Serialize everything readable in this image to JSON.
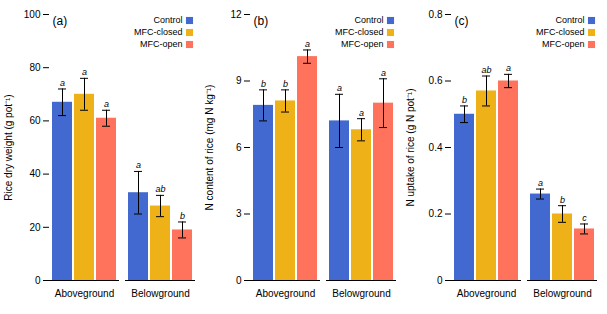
{
  "chart_data": [
    {
      "type": "bar",
      "title": "(a)",
      "ylabel": "Rice dry weight (g pot⁻¹)",
      "categories": [
        "Aboveground",
        "Belowground"
      ],
      "series": [
        {
          "name": "Control",
          "values": [
            67,
            33
          ],
          "errors": [
            5,
            8
          ],
          "annotations": [
            "a",
            "a"
          ]
        },
        {
          "name": "MFC-closed",
          "values": [
            70,
            28
          ],
          "errors": [
            6,
            4
          ],
          "annotations": [
            "a",
            "ab"
          ]
        },
        {
          "name": "MFC-open",
          "values": [
            61,
            19
          ],
          "errors": [
            3,
            3
          ],
          "annotations": [
            "a",
            "b"
          ]
        }
      ],
      "ylim": [
        0,
        100
      ],
      "yticks": [
        0,
        20,
        40,
        60,
        80,
        100
      ],
      "legend": "upper right"
    },
    {
      "type": "bar",
      "title": "(b)",
      "ylabel": "N content of rice (mg N kg⁻¹)",
      "categories": [
        "Aboveground",
        "Belowground"
      ],
      "series": [
        {
          "name": "Control",
          "values": [
            7.9,
            7.2
          ],
          "errors": [
            0.7,
            1.2
          ],
          "annotations": [
            "b",
            "a"
          ]
        },
        {
          "name": "MFC-closed",
          "values": [
            8.1,
            6.8
          ],
          "errors": [
            0.5,
            0.5
          ],
          "annotations": [
            "b",
            "a"
          ]
        },
        {
          "name": "MFC-open",
          "values": [
            10.1,
            8.0
          ],
          "errors": [
            0.3,
            1.1
          ],
          "annotations": [
            "a",
            "a"
          ]
        }
      ],
      "ylim": [
        0,
        12
      ],
      "yticks": [
        0,
        3,
        6,
        9,
        12
      ],
      "legend": "upper right"
    },
    {
      "type": "bar",
      "title": "(c)",
      "ylabel": "N uptake of rice (g N pot⁻¹)",
      "categories": [
        "Aboveground",
        "Belowground"
      ],
      "series": [
        {
          "name": "Control",
          "values": [
            0.5,
            0.26
          ],
          "errors": [
            0.025,
            0.015
          ],
          "annotations": [
            "b",
            "a"
          ]
        },
        {
          "name": "MFC-closed",
          "values": [
            0.57,
            0.2
          ],
          "errors": [
            0.045,
            0.025
          ],
          "annotations": [
            "ab",
            "b"
          ]
        },
        {
          "name": "MFC-open",
          "values": [
            0.6,
            0.155
          ],
          "errors": [
            0.02,
            0.015
          ],
          "annotations": [
            "a",
            "c"
          ]
        }
      ],
      "ylim": [
        0,
        0.8
      ],
      "yticks": [
        0,
        0.2,
        0.4,
        0.6,
        0.8
      ],
      "legend": "upper right"
    }
  ]
}
